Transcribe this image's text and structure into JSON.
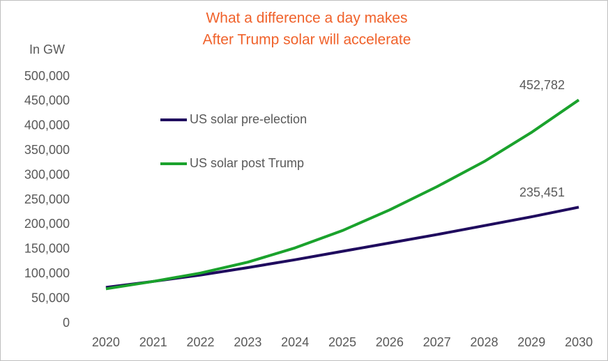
{
  "chart_data": {
    "type": "line",
    "title": "What a difference a day makes",
    "subtitle": "After Trump solar will accelerate",
    "y_label": "In GW",
    "categories": [
      "2020",
      "2021",
      "2022",
      "2023",
      "2024",
      "2025",
      "2026",
      "2027",
      "2028",
      "2029",
      "2030"
    ],
    "series": [
      {
        "name": "US solar pre-election",
        "color": "#1F0A5E",
        "values": [
          73000,
          85000,
          98000,
          113000,
          129000,
          146000,
          163000,
          180000,
          198000,
          216000,
          235451
        ],
        "value_labels": [
          null,
          null,
          null,
          null,
          null,
          null,
          null,
          null,
          null,
          null,
          "235,451"
        ]
      },
      {
        "name": "US solar post Trump",
        "color": "#1AA22C",
        "values": [
          70000,
          85000,
          102000,
          124000,
          153000,
          188000,
          230000,
          277000,
          328000,
          387000,
          452782
        ],
        "value_labels": [
          null,
          null,
          null,
          null,
          null,
          null,
          null,
          null,
          null,
          null,
          "452,782"
        ]
      }
    ],
    "ylim": [
      0,
      500000
    ],
    "yticks": [
      0,
      {
        "value": 50000,
        "label": "50,000"
      },
      {
        "value": 100000,
        "label": "100,000"
      },
      {
        "value": 150000,
        "label": "150,000"
      },
      {
        "value": 200000,
        "label": "200,000"
      },
      {
        "value": 250000,
        "label": "250,000"
      },
      {
        "value": 300000,
        "label": "300,000"
      },
      {
        "value": 350000,
        "label": "350,000"
      },
      {
        "value": 400000,
        "label": "400,000"
      },
      {
        "value": 450000,
        "label": "450,000"
      },
      {
        "value": 500000,
        "label": "500,000"
      }
    ],
    "grid": false,
    "legend": "upper left"
  }
}
